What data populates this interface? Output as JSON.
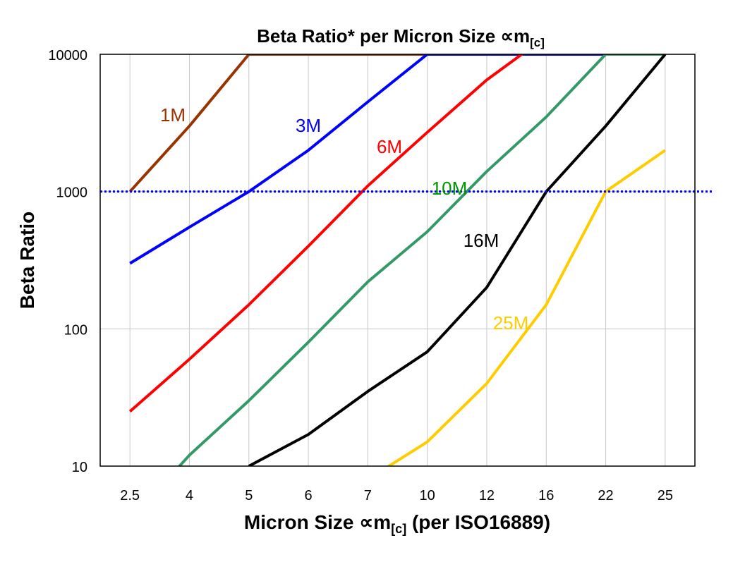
{
  "chart_data": {
    "type": "line",
    "title": "Beta Ratio* per Micron Size ∝m",
    "title_sub": "[c]",
    "xlabel": "Micron Size ∝m",
    "xlabel_sub": "[c]",
    "xlabel_suffix": " (per ISO16889)",
    "ylabel": "Beta Ratio",
    "y_scale": "log",
    "ylim": [
      10,
      10000
    ],
    "yticks": [
      "10",
      "100",
      "1000",
      "10000"
    ],
    "categories": [
      "2.5",
      "4",
      "5",
      "6",
      "7",
      "10",
      "12",
      "16",
      "22",
      "25"
    ],
    "grid": true,
    "reference_line": {
      "y": 1000,
      "color": "#0000FF",
      "style": "dotted"
    },
    "series": [
      {
        "name": "1M",
        "color": "#993300",
        "label_color": "#993300",
        "values": [
          1000,
          3000,
          10000,
          10000,
          10000,
          10000,
          10000,
          10000,
          10000,
          10000
        ]
      },
      {
        "name": "3M",
        "color": "#0000FF",
        "label_color": "#0000FF",
        "values": [
          300,
          550,
          1000,
          2000,
          4500,
          10000,
          10000,
          10000,
          10000,
          10000
        ]
      },
      {
        "name": "6M",
        "color": "#FF0000",
        "label_color": "#FF0000",
        "values": [
          25,
          60,
          150,
          400,
          1100,
          2700,
          6500,
          13500,
          null,
          null
        ]
      },
      {
        "name": "10M",
        "color": "#339966",
        "label_color": "#009900",
        "values": [
          4,
          12,
          30,
          80,
          220,
          510,
          1400,
          3500,
          10000,
          10000
        ]
      },
      {
        "name": "16M",
        "color": "#000000",
        "label_color": "#000000",
        "values": [
          null,
          null,
          10,
          17,
          35,
          68,
          200,
          1000,
          3000,
          10000
        ]
      },
      {
        "name": "25M",
        "color": "#FFCC00",
        "label_color": "#FFCC00",
        "values": [
          null,
          null,
          null,
          null,
          8,
          15,
          40,
          150,
          1000,
          2000
        ]
      }
    ]
  }
}
